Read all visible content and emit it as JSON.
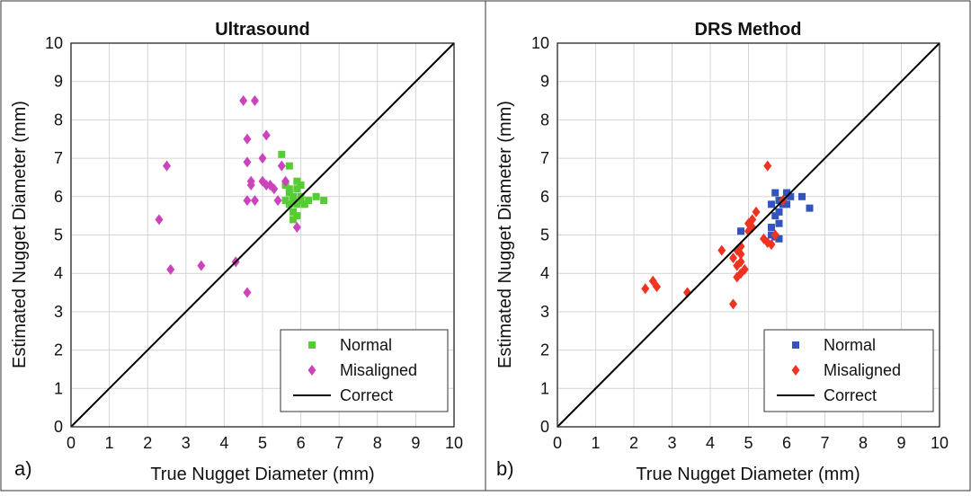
{
  "chart_data": [
    {
      "type": "scatter",
      "panel_label": "a)",
      "title": "Ultrasound",
      "xlabel": "True Nugget Diameter (mm)",
      "ylabel": "Estimated Nugget Diameter (mm)",
      "xlim": [
        0,
        10
      ],
      "ylim": [
        0,
        10
      ],
      "xticks": [
        "0",
        "1",
        "2",
        "3",
        "4",
        "5",
        "6",
        "7",
        "8",
        "9",
        "10"
      ],
      "yticks": [
        "0",
        "1",
        "2",
        "3",
        "4",
        "5",
        "6",
        "7",
        "8",
        "9",
        "10"
      ],
      "grid": true,
      "legend": "bottom-right",
      "series": [
        {
          "name": "Normal",
          "marker": "square",
          "color": "#55cc33",
          "points": [
            [
              5.5,
              7.1
            ],
            [
              5.7,
              6.8
            ],
            [
              5.6,
              6.3
            ],
            [
              5.7,
              6.2
            ],
            [
              5.8,
              6.0
            ],
            [
              5.9,
              6.2
            ],
            [
              6.0,
              6.3
            ],
            [
              5.8,
              5.9
            ],
            [
              5.9,
              5.8
            ],
            [
              6.0,
              5.9
            ],
            [
              5.7,
              5.8
            ],
            [
              5.8,
              5.6
            ],
            [
              5.8,
              5.4
            ],
            [
              5.9,
              5.5
            ],
            [
              6.1,
              5.8
            ],
            [
              5.7,
              6.1
            ],
            [
              6.0,
              6.0
            ],
            [
              6.4,
              6.0
            ],
            [
              6.6,
              5.9
            ],
            [
              5.9,
              6.4
            ],
            [
              6.2,
              5.9
            ],
            [
              5.6,
              5.9
            ]
          ]
        },
        {
          "name": "Misaligned",
          "marker": "diamond",
          "color": "#cc44bb",
          "points": [
            [
              2.3,
              5.4
            ],
            [
              2.5,
              6.8
            ],
            [
              2.6,
              4.1
            ],
            [
              3.4,
              4.2
            ],
            [
              4.3,
              4.3
            ],
            [
              4.6,
              3.5
            ],
            [
              4.5,
              8.5
            ],
            [
              4.8,
              8.5
            ],
            [
              4.6,
              7.5
            ],
            [
              4.6,
              6.9
            ],
            [
              4.7,
              6.4
            ],
            [
              4.7,
              6.3
            ],
            [
              4.6,
              5.9
            ],
            [
              4.8,
              5.9
            ],
            [
              5.0,
              6.4
            ],
            [
              5.0,
              7.0
            ],
            [
              5.1,
              7.6
            ],
            [
              5.1,
              6.3
            ],
            [
              5.2,
              6.3
            ],
            [
              5.3,
              6.2
            ],
            [
              5.4,
              5.9
            ],
            [
              5.5,
              6.8
            ],
            [
              5.6,
              6.4
            ],
            [
              5.9,
              5.2
            ]
          ]
        },
        {
          "name": "Correct",
          "marker": "line",
          "color": "#000000",
          "points": [
            [
              0,
              0
            ],
            [
              10,
              10
            ]
          ]
        }
      ]
    },
    {
      "type": "scatter",
      "panel_label": "b)",
      "title": "DRS Method",
      "xlabel": "True Nugget Diameter (mm)",
      "ylabel": "Estimated Nugget Diameter (mm)",
      "xlim": [
        0,
        10
      ],
      "ylim": [
        0,
        10
      ],
      "xticks": [
        "0",
        "1",
        "2",
        "3",
        "4",
        "5",
        "6",
        "7",
        "8",
        "9",
        "10"
      ],
      "yticks": [
        "0",
        "1",
        "2",
        "3",
        "4",
        "5",
        "6",
        "7",
        "8",
        "9",
        "10"
      ],
      "grid": true,
      "legend": "bottom-right",
      "series": [
        {
          "name": "Normal",
          "marker": "square",
          "color": "#3355bb",
          "points": [
            [
              4.8,
              5.1
            ],
            [
              5.6,
              5.0
            ],
            [
              5.6,
              5.2
            ],
            [
              5.7,
              5.5
            ],
            [
              5.8,
              5.6
            ],
            [
              5.8,
              5.3
            ],
            [
              5.8,
              4.9
            ],
            [
              5.7,
              6.1
            ],
            [
              5.8,
              5.9
            ],
            [
              5.9,
              5.9
            ],
            [
              6.0,
              6.1
            ],
            [
              6.0,
              5.8
            ],
            [
              6.1,
              6.0
            ],
            [
              6.4,
              6.0
            ],
            [
              6.6,
              5.7
            ],
            [
              5.9,
              5.8
            ],
            [
              5.6,
              5.8
            ],
            [
              5.7,
              4.95
            ]
          ]
        },
        {
          "name": "Misaligned",
          "marker": "diamond",
          "color": "#ee3322",
          "points": [
            [
              2.3,
              3.6
            ],
            [
              2.5,
              3.8
            ],
            [
              2.6,
              3.65
            ],
            [
              3.4,
              3.5
            ],
            [
              4.3,
              4.6
            ],
            [
              4.6,
              3.2
            ],
            [
              4.6,
              4.4
            ],
            [
              4.7,
              4.6
            ],
            [
              4.7,
              4.2
            ],
            [
              4.7,
              3.9
            ],
            [
              4.8,
              4.0
            ],
            [
              4.8,
              4.3
            ],
            [
              4.8,
              4.5
            ],
            [
              4.9,
              4.1
            ],
            [
              4.8,
              4.7
            ],
            [
              5.0,
              5.1
            ],
            [
              5.0,
              5.3
            ],
            [
              5.1,
              5.4
            ],
            [
              5.1,
              5.2
            ],
            [
              5.2,
              5.6
            ],
            [
              5.4,
              4.9
            ],
            [
              5.5,
              4.8
            ],
            [
              5.5,
              6.8
            ],
            [
              5.6,
              4.75
            ],
            [
              5.9,
              5.9
            ],
            [
              5.7,
              5.0
            ]
          ]
        },
        {
          "name": "Correct",
          "marker": "line",
          "color": "#000000",
          "points": [
            [
              0,
              0
            ],
            [
              10,
              10
            ]
          ]
        }
      ]
    }
  ]
}
